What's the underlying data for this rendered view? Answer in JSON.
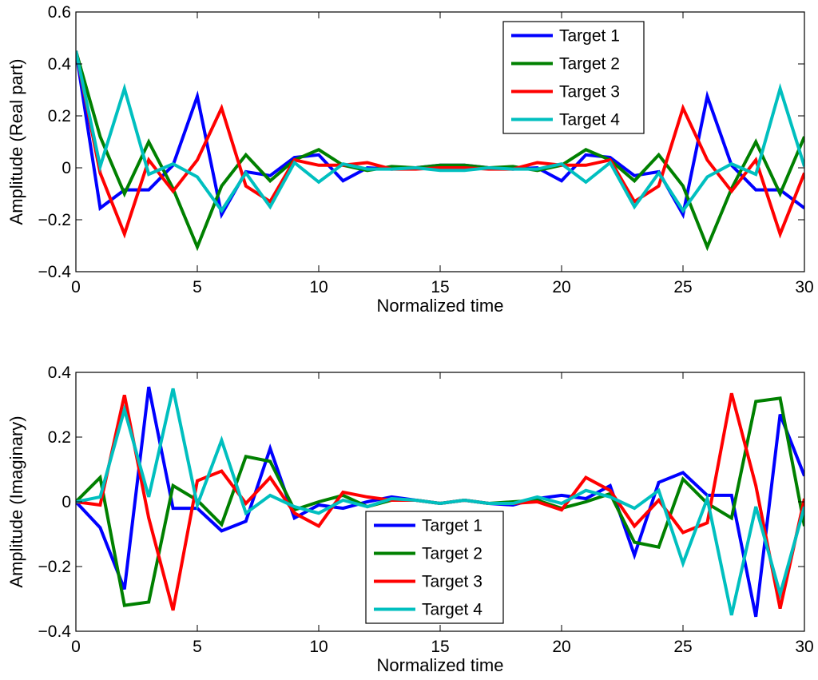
{
  "chart_data": [
    {
      "type": "line",
      "title": "",
      "xlabel": "Normalized time",
      "ylabel": "Amplitude (Real part)",
      "xlim": [
        0,
        30
      ],
      "ylim": [
        -0.4,
        0.6
      ],
      "xticks": [
        0,
        5,
        10,
        15,
        20,
        25,
        30
      ],
      "yticks": [
        -0.4,
        -0.2,
        0,
        0.2,
        0.4,
        0.6
      ],
      "xtick_labels": [
        "0",
        "5",
        "10",
        "15",
        "20",
        "25",
        "30"
      ],
      "ytick_labels": [
        "−0.4",
        "−0.2",
        "0",
        "0.2",
        "0.4",
        "0.6"
      ],
      "legend_position": "top-right",
      "x": [
        0,
        1,
        2,
        3,
        4,
        5,
        6,
        7,
        8,
        9,
        10,
        11,
        12,
        13,
        14,
        15,
        16,
        17,
        18,
        19,
        20,
        21,
        22,
        23,
        24,
        25,
        26,
        27,
        28,
        29,
        30
      ],
      "series": [
        {
          "name": "Target 1",
          "color": "#0000ff",
          "values": [
            0.45,
            -0.155,
            -0.085,
            -0.085,
            0.01,
            0.275,
            -0.18,
            -0.015,
            -0.03,
            0.04,
            0.05,
            -0.05,
            0.0,
            -0.005,
            0.0,
            0.01,
            0.01,
            0.0,
            -0.005,
            0.0,
            -0.05,
            0.05,
            0.04,
            -0.03,
            -0.015,
            -0.18,
            0.275,
            0.01,
            -0.085,
            -0.085,
            -0.155
          ]
        },
        {
          "name": "Target 2",
          "color": "#008000",
          "values": [
            0.45,
            0.12,
            -0.1,
            0.1,
            -0.08,
            -0.305,
            -0.07,
            0.05,
            -0.05,
            0.03,
            0.07,
            0.01,
            -0.01,
            0.005,
            0.0,
            0.01,
            0.01,
            0.0,
            0.005,
            -0.01,
            0.01,
            0.07,
            0.03,
            -0.05,
            0.05,
            -0.07,
            -0.305,
            -0.08,
            0.1,
            -0.1,
            0.12
          ]
        },
        {
          "name": "Target 3",
          "color": "#ff0000",
          "values": [
            0.45,
            -0.02,
            -0.255,
            0.03,
            -0.09,
            0.03,
            0.23,
            -0.07,
            -0.13,
            0.03,
            0.01,
            0.01,
            0.02,
            -0.005,
            -0.005,
            0.0,
            0.0,
            -0.005,
            -0.005,
            0.02,
            0.01,
            0.01,
            0.03,
            -0.13,
            -0.07,
            0.23,
            0.03,
            -0.09,
            0.03,
            -0.255,
            -0.02
          ]
        },
        {
          "name": "Target 4",
          "color": "#00bfbf",
          "values": [
            0.45,
            0.005,
            0.305,
            -0.025,
            0.015,
            -0.035,
            -0.165,
            -0.02,
            -0.15,
            0.02,
            -0.055,
            0.015,
            -0.005,
            -0.005,
            0.0,
            -0.01,
            -0.01,
            0.0,
            -0.005,
            -0.005,
            0.015,
            -0.055,
            0.02,
            -0.15,
            -0.02,
            -0.165,
            -0.035,
            0.015,
            -0.025,
            0.305,
            0.005
          ]
        }
      ]
    },
    {
      "type": "line",
      "title": "",
      "xlabel": "Normalized time",
      "ylabel": "Amplitude (Imaginary)",
      "xlim": [
        0,
        30
      ],
      "ylim": [
        -0.4,
        0.4
      ],
      "xticks": [
        0,
        5,
        10,
        15,
        20,
        25,
        30
      ],
      "yticks": [
        -0.4,
        -0.2,
        0,
        0.2,
        0.4
      ],
      "xtick_labels": [
        "0",
        "5",
        "10",
        "15",
        "20",
        "25",
        "30"
      ],
      "ytick_labels": [
        "−0.4",
        "−0.2",
        "0",
        "0.2",
        "0.4"
      ],
      "legend_position": "bottom-center",
      "x": [
        0,
        1,
        2,
        3,
        4,
        5,
        6,
        7,
        8,
        9,
        10,
        11,
        12,
        13,
        14,
        15,
        16,
        17,
        18,
        19,
        20,
        21,
        22,
        23,
        24,
        25,
        26,
        27,
        28,
        29,
        30
      ],
      "series": [
        {
          "name": "Target 1",
          "color": "#0000ff",
          "values": [
            0.0,
            -0.08,
            -0.27,
            0.355,
            -0.02,
            -0.02,
            -0.09,
            -0.06,
            0.165,
            -0.05,
            -0.01,
            -0.02,
            0.0,
            0.015,
            0.005,
            -0.005,
            0.005,
            -0.005,
            -0.01,
            0.01,
            0.02,
            0.01,
            0.05,
            -0.165,
            0.06,
            0.09,
            0.02,
            0.02,
            -0.355,
            0.27,
            0.08
          ]
        },
        {
          "name": "Target 2",
          "color": "#008000",
          "values": [
            0.0,
            0.075,
            -0.32,
            -0.31,
            0.05,
            0.005,
            -0.07,
            0.14,
            0.125,
            -0.025,
            0.0,
            0.02,
            -0.015,
            0.005,
            0.005,
            -0.005,
            0.005,
            -0.005,
            0.0,
            0.005,
            -0.02,
            0.0,
            0.025,
            -0.125,
            -0.14,
            0.07,
            -0.005,
            -0.05,
            0.31,
            0.32,
            -0.075
          ]
        },
        {
          "name": "Target 3",
          "color": "#ff0000",
          "values": [
            0.0,
            -0.01,
            0.33,
            -0.05,
            -0.335,
            0.065,
            0.095,
            -0.005,
            0.075,
            -0.035,
            -0.075,
            0.03,
            0.015,
            0.005,
            0.005,
            -0.005,
            0.005,
            -0.005,
            -0.005,
            0.0,
            -0.025,
            0.075,
            0.035,
            -0.075,
            0.005,
            -0.095,
            -0.065,
            0.335,
            0.05,
            -0.33,
            0.01
          ]
        },
        {
          "name": "Target 4",
          "color": "#00bfbf",
          "values": [
            0.0,
            0.015,
            0.285,
            0.015,
            0.35,
            -0.01,
            0.19,
            -0.035,
            0.02,
            -0.015,
            -0.035,
            0.005,
            -0.015,
            0.01,
            0.005,
            -0.005,
            0.005,
            -0.005,
            -0.005,
            0.015,
            -0.005,
            0.035,
            0.015,
            -0.02,
            0.035,
            -0.19,
            0.01,
            -0.35,
            -0.015,
            -0.285,
            -0.015
          ]
        }
      ]
    }
  ]
}
